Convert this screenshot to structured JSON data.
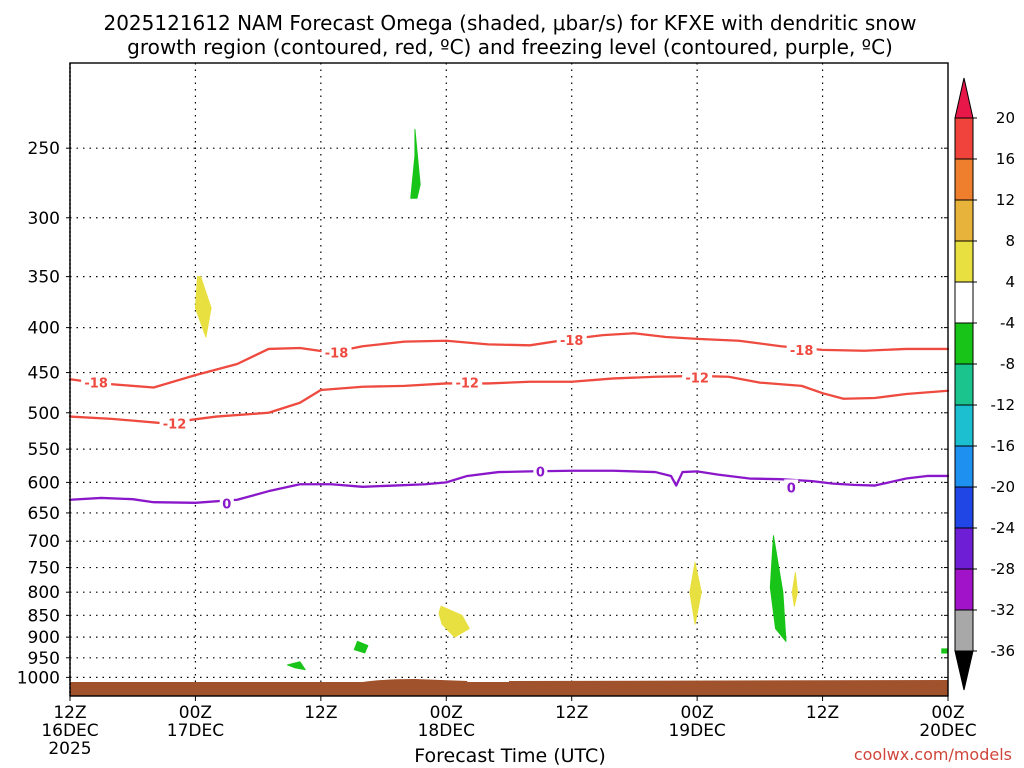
{
  "chart_data": {
    "type": "time-height cross section",
    "title_line1": "2025121612 NAM Forecast Omega (shaded, μbar/s) for KFXE with dendritic snow",
    "title_line2": "growth region (contoured, red, ºC) and freezing level (contoured, purple, ºC)",
    "xlabel": "Forecast Time (UTC)",
    "credit": "coolwx.com/models",
    "y_axis": {
      "scale": "log-pressure",
      "range_hPa": [
        1050,
        200
      ],
      "ticks": [
        250,
        300,
        350,
        400,
        450,
        500,
        550,
        600,
        650,
        700,
        750,
        800,
        850,
        900,
        950,
        1000
      ]
    },
    "x_axis": {
      "range_hours": [
        0,
        84
      ],
      "ticks": [
        {
          "h": 0,
          "line1": "12Z",
          "line2": "16DEC",
          "line3": "2025"
        },
        {
          "h": 12,
          "line1": "00Z",
          "line2": "17DEC"
        },
        {
          "h": 24,
          "line1": "12Z"
        },
        {
          "h": 36,
          "line1": "00Z",
          "line2": "18DEC"
        },
        {
          "h": 48,
          "line1": "12Z"
        },
        {
          "h": 60,
          "line1": "00Z",
          "line2": "19DEC"
        },
        {
          "h": 72,
          "line1": "12Z"
        },
        {
          "h": 84,
          "line1": "00Z",
          "line2": "20DEC"
        }
      ]
    },
    "grid": true,
    "colorbar": {
      "labels": [
        "20",
        "16",
        "12",
        "8",
        "4",
        "-4",
        "-8",
        "-12",
        "-16",
        "-20",
        "-24",
        "-28",
        "-32",
        "-36"
      ],
      "colors": [
        "#e8174a",
        "#f0433c",
        "#f07f2d",
        "#e8b33a",
        "#e8e040",
        "#ffffff",
        "#19c419",
        "#1bc38d",
        "#1bbfcf",
        "#1e90ef",
        "#2046e6",
        "#6e1fd6",
        "#a013c8",
        "#a8a8a8",
        "#000000"
      ]
    },
    "contours": [
      {
        "name": "-18",
        "color": "#ef4a3f",
        "points": [
          [
            0,
            458
          ],
          [
            3,
            463
          ],
          [
            8,
            468
          ],
          [
            12,
            453
          ],
          [
            16,
            440
          ],
          [
            19,
            423
          ],
          [
            22,
            422
          ],
          [
            25,
            427
          ],
          [
            28,
            420
          ],
          [
            32,
            415
          ],
          [
            36,
            414
          ],
          [
            40,
            418
          ],
          [
            44,
            419
          ],
          [
            48,
            412
          ],
          [
            51,
            408
          ],
          [
            54,
            406
          ],
          [
            57,
            410
          ],
          [
            60,
            412
          ],
          [
            64,
            414
          ],
          [
            68,
            420
          ],
          [
            72,
            424
          ],
          [
            76,
            425
          ],
          [
            80,
            423
          ],
          [
            84,
            423
          ]
        ],
        "labels": [
          [
            2.5,
            462
          ],
          [
            25.5,
            427
          ],
          [
            48,
            413
          ],
          [
            70,
            424
          ]
        ]
      },
      {
        "name": "-12",
        "color": "#ef4a3f",
        "points": [
          [
            0,
            505
          ],
          [
            4,
            508
          ],
          [
            9,
            514
          ],
          [
            14,
            505
          ],
          [
            19,
            500
          ],
          [
            22,
            487
          ],
          [
            24,
            471
          ],
          [
            28,
            467
          ],
          [
            32,
            466
          ],
          [
            36,
            463
          ],
          [
            40,
            463
          ],
          [
            44,
            461
          ],
          [
            48,
            461
          ],
          [
            52,
            457
          ],
          [
            56,
            455
          ],
          [
            60,
            454
          ],
          [
            63,
            455
          ],
          [
            66,
            462
          ],
          [
            70,
            466
          ],
          [
            72,
            475
          ],
          [
            74,
            482
          ],
          [
            77,
            481
          ],
          [
            80,
            476
          ],
          [
            84,
            472
          ]
        ],
        "labels": [
          [
            10,
            514
          ],
          [
            38,
            462
          ],
          [
            60,
            456
          ]
        ]
      },
      {
        "name": "0",
        "color": "#8a17c9",
        "points": [
          [
            0,
            628
          ],
          [
            3,
            625
          ],
          [
            6,
            627
          ],
          [
            8,
            632
          ],
          [
            12,
            633
          ],
          [
            16,
            628
          ],
          [
            19,
            614
          ],
          [
            22,
            603
          ],
          [
            25,
            603
          ],
          [
            28,
            607
          ],
          [
            31,
            605
          ],
          [
            34,
            603
          ],
          [
            36,
            600
          ],
          [
            38,
            590
          ],
          [
            41,
            584
          ],
          [
            44,
            583
          ],
          [
            48,
            582
          ],
          [
            52,
            582
          ],
          [
            56,
            584
          ],
          [
            57.5,
            590
          ],
          [
            58,
            605
          ],
          [
            58.6,
            584
          ],
          [
            60,
            583
          ],
          [
            62,
            588
          ],
          [
            65,
            594
          ],
          [
            68,
            595
          ],
          [
            71,
            598
          ],
          [
            73,
            602
          ],
          [
            75,
            604
          ],
          [
            77,
            605
          ],
          [
            80,
            594
          ],
          [
            82,
            590
          ],
          [
            84,
            590
          ]
        ],
        "labels": [
          [
            15,
            634
          ],
          [
            45,
            583
          ],
          [
            69,
            608
          ]
        ]
      }
    ],
    "shaded_regions": [
      {
        "value": "-8",
        "color": "#19c419",
        "points": [
          [
            33,
            238
          ],
          [
            33.5,
            275
          ],
          [
            33.2,
            285
          ],
          [
            32.6,
            285
          ],
          [
            33.0,
            255
          ]
        ]
      },
      {
        "value": "4",
        "color": "#e8e040",
        "points": [
          [
            12.5,
            350
          ],
          [
            13.5,
            380
          ],
          [
            13.0,
            410
          ],
          [
            12.0,
            380
          ],
          [
            12.2,
            350
          ]
        ]
      },
      {
        "value": "4",
        "color": "#e8e040",
        "points": [
          [
            35.5,
            830
          ],
          [
            37.5,
            850
          ],
          [
            38.2,
            880
          ],
          [
            36.8,
            900
          ],
          [
            35.6,
            870
          ],
          [
            35.3,
            845
          ]
        ]
      },
      {
        "value": "-8",
        "color": "#19c419",
        "points": [
          [
            27.5,
            910
          ],
          [
            28.5,
            920
          ],
          [
            28.2,
            938
          ],
          [
            27.2,
            930
          ]
        ]
      },
      {
        "value": "-8",
        "color": "#19c419",
        "points": [
          [
            22.0,
            960
          ],
          [
            22.5,
            980
          ],
          [
            21.5,
            975
          ],
          [
            20.8,
            968
          ]
        ]
      },
      {
        "value": "4",
        "color": "#e8e040",
        "points": [
          [
            59.8,
            740
          ],
          [
            60.4,
            800
          ],
          [
            59.8,
            870
          ],
          [
            59.3,
            800
          ]
        ]
      },
      {
        "value": "-8",
        "color": "#19c419",
        "points": [
          [
            67.3,
            690
          ],
          [
            68.2,
            800
          ],
          [
            68.5,
            910
          ],
          [
            67.5,
            880
          ],
          [
            67.0,
            790
          ]
        ]
      },
      {
        "value": "4",
        "color": "#e8e040",
        "points": [
          [
            69.4,
            760
          ],
          [
            69.6,
            800
          ],
          [
            69.3,
            830
          ],
          [
            69.1,
            800
          ]
        ]
      },
      {
        "value": "-8",
        "color": "#19c419",
        "points": [
          [
            83.4,
            928
          ],
          [
            84,
            928
          ],
          [
            84,
            938
          ],
          [
            83.4,
            938
          ]
        ]
      }
    ],
    "terrain": {
      "color": "#a0522d"
    }
  }
}
